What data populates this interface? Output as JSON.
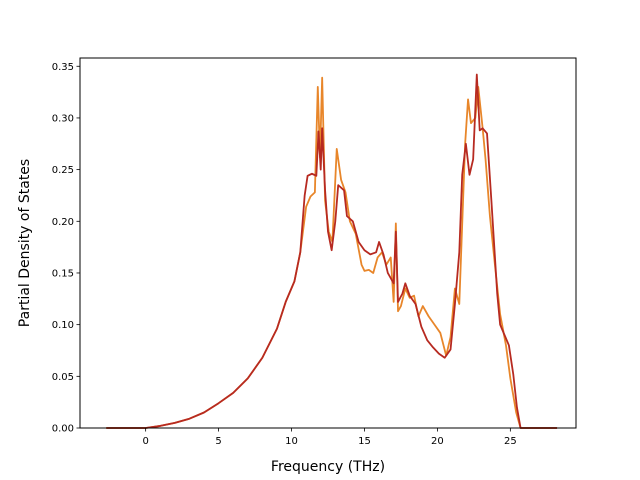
{
  "chart_data": {
    "type": "line",
    "title": "",
    "xlabel": "Frequency (THz)",
    "ylabel": "Partial Density of States",
    "xlim": [
      -4.5,
      29.5
    ],
    "ylim": [
      0.0,
      0.358
    ],
    "xticks": [
      0,
      5,
      10,
      15,
      20,
      25
    ],
    "yticks": [
      0.0,
      0.05,
      0.1,
      0.15,
      0.2,
      0.25,
      0.3,
      0.35
    ],
    "ytick_labels": [
      "0.00",
      "0.05",
      "0.10",
      "0.15",
      "0.20",
      "0.25",
      "0.30",
      "0.35"
    ],
    "grid": false,
    "legend": null,
    "series": [
      {
        "color": "#e8862a",
        "points": [
          [
            -2.7,
            0.0
          ],
          [
            0.0,
            0.0
          ],
          [
            1.0,
            0.002
          ],
          [
            2.0,
            0.005
          ],
          [
            3.0,
            0.009
          ],
          [
            4.0,
            0.015
          ],
          [
            5.0,
            0.024
          ],
          [
            6.0,
            0.034
          ],
          [
            7.0,
            0.048
          ],
          [
            8.0,
            0.068
          ],
          [
            9.0,
            0.096
          ],
          [
            9.6,
            0.122
          ],
          [
            10.2,
            0.142
          ],
          [
            10.6,
            0.17
          ],
          [
            11.0,
            0.214
          ],
          [
            11.3,
            0.224
          ],
          [
            11.6,
            0.228
          ],
          [
            11.8,
            0.33
          ],
          [
            11.95,
            0.262
          ],
          [
            12.1,
            0.339
          ],
          [
            12.3,
            0.22
          ],
          [
            12.55,
            0.19
          ],
          [
            12.8,
            0.18
          ],
          [
            13.1,
            0.27
          ],
          [
            13.4,
            0.24
          ],
          [
            13.7,
            0.228
          ],
          [
            14.0,
            0.2
          ],
          [
            14.4,
            0.188
          ],
          [
            14.8,
            0.158
          ],
          [
            15.0,
            0.152
          ],
          [
            15.3,
            0.153
          ],
          [
            15.6,
            0.15
          ],
          [
            15.9,
            0.165
          ],
          [
            16.2,
            0.17
          ],
          [
            16.5,
            0.158
          ],
          [
            16.8,
            0.165
          ],
          [
            17.0,
            0.122
          ],
          [
            17.15,
            0.198
          ],
          [
            17.3,
            0.113
          ],
          [
            17.5,
            0.118
          ],
          [
            17.8,
            0.135
          ],
          [
            18.1,
            0.126
          ],
          [
            18.4,
            0.128
          ],
          [
            18.7,
            0.108
          ],
          [
            19.0,
            0.118
          ],
          [
            19.4,
            0.108
          ],
          [
            19.8,
            0.1
          ],
          [
            20.2,
            0.092
          ],
          [
            20.6,
            0.07
          ],
          [
            20.9,
            0.088
          ],
          [
            21.2,
            0.135
          ],
          [
            21.5,
            0.12
          ],
          [
            21.9,
            0.275
          ],
          [
            22.1,
            0.318
          ],
          [
            22.3,
            0.295
          ],
          [
            22.6,
            0.3
          ],
          [
            22.8,
            0.33
          ],
          [
            23.1,
            0.29
          ],
          [
            23.3,
            0.26
          ],
          [
            23.6,
            0.205
          ],
          [
            24.0,
            0.15
          ],
          [
            24.3,
            0.11
          ],
          [
            24.7,
            0.08
          ],
          [
            25.0,
            0.048
          ],
          [
            25.4,
            0.015
          ],
          [
            25.7,
            0.0
          ],
          [
            28.2,
            0.0
          ]
        ]
      },
      {
        "color": "#b72a21",
        "points": [
          [
            -2.7,
            0.0
          ],
          [
            0.0,
            0.0
          ],
          [
            1.0,
            0.002
          ],
          [
            2.0,
            0.005
          ],
          [
            3.0,
            0.009
          ],
          [
            4.0,
            0.015
          ],
          [
            5.0,
            0.024
          ],
          [
            6.0,
            0.034
          ],
          [
            7.0,
            0.048
          ],
          [
            8.0,
            0.068
          ],
          [
            9.0,
            0.096
          ],
          [
            9.6,
            0.122
          ],
          [
            10.2,
            0.142
          ],
          [
            10.6,
            0.17
          ],
          [
            10.9,
            0.225
          ],
          [
            11.1,
            0.244
          ],
          [
            11.4,
            0.246
          ],
          [
            11.7,
            0.244
          ],
          [
            11.85,
            0.287
          ],
          [
            12.0,
            0.25
          ],
          [
            12.1,
            0.29
          ],
          [
            12.3,
            0.23
          ],
          [
            12.5,
            0.19
          ],
          [
            12.75,
            0.172
          ],
          [
            13.0,
            0.2
          ],
          [
            13.2,
            0.235
          ],
          [
            13.6,
            0.23
          ],
          [
            13.8,
            0.205
          ],
          [
            14.2,
            0.2
          ],
          [
            14.6,
            0.18
          ],
          [
            15.0,
            0.172
          ],
          [
            15.4,
            0.168
          ],
          [
            15.8,
            0.17
          ],
          [
            16.0,
            0.18
          ],
          [
            16.3,
            0.168
          ],
          [
            16.6,
            0.15
          ],
          [
            17.0,
            0.14
          ],
          [
            17.15,
            0.19
          ],
          [
            17.3,
            0.122
          ],
          [
            17.6,
            0.13
          ],
          [
            17.8,
            0.14
          ],
          [
            18.1,
            0.128
          ],
          [
            18.5,
            0.12
          ],
          [
            18.9,
            0.098
          ],
          [
            19.3,
            0.085
          ],
          [
            19.7,
            0.078
          ],
          [
            20.1,
            0.072
          ],
          [
            20.5,
            0.068
          ],
          [
            20.9,
            0.076
          ],
          [
            21.2,
            0.12
          ],
          [
            21.5,
            0.17
          ],
          [
            21.7,
            0.245
          ],
          [
            21.95,
            0.275
          ],
          [
            22.2,
            0.245
          ],
          [
            22.45,
            0.26
          ],
          [
            22.7,
            0.342
          ],
          [
            22.9,
            0.288
          ],
          [
            23.1,
            0.29
          ],
          [
            23.4,
            0.285
          ],
          [
            23.7,
            0.22
          ],
          [
            24.1,
            0.13
          ],
          [
            24.3,
            0.1
          ],
          [
            24.6,
            0.09
          ],
          [
            24.9,
            0.08
          ],
          [
            25.2,
            0.052
          ],
          [
            25.45,
            0.02
          ],
          [
            25.7,
            0.0
          ],
          [
            28.2,
            0.0
          ]
        ]
      }
    ]
  }
}
